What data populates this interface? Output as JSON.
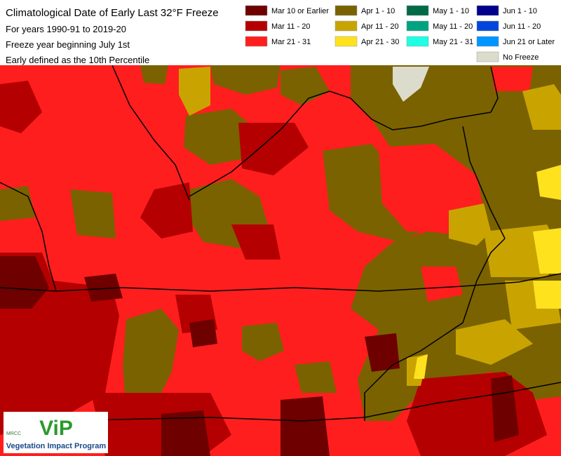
{
  "header": {
    "title_lines": [
      "Climatological Date of Early Last 32°F Freeze",
      "For years 1990-91 to 2019-20",
      "Freeze year beginning July 1st",
      "Early defined as the 10th Percentile"
    ]
  },
  "legend": {
    "items": [
      {
        "label": "Mar 10 or Earlier",
        "color": "#6e0000"
      },
      {
        "label": "Mar 11 - 20",
        "color": "#b40000"
      },
      {
        "label": "Mar 21 - 31",
        "color": "#ff1e1e"
      },
      {
        "label": "Apr 1 - 10",
        "color": "#7a6200"
      },
      {
        "label": "Apr 11 - 20",
        "color": "#c9a400"
      },
      {
        "label": "Apr 21 - 30",
        "color": "#ffe21e"
      },
      {
        "label": "May 1 - 10",
        "color": "#006a46"
      },
      {
        "label": "May 11 - 20",
        "color": "#00a381"
      },
      {
        "label": "May 21 - 31",
        "color": "#1effe4"
      },
      {
        "label": "Jun 1 - 10",
        "color": "#00008c"
      },
      {
        "label": "Jun 11 - 20",
        "color": "#0046dc"
      },
      {
        "label": "Jun 21 or Later",
        "color": "#0096ff"
      },
      {
        "label": "No Freeze",
        "color": "#dcdccc"
      }
    ]
  },
  "logo": {
    "org": "MRCC",
    "mark": "ViP",
    "program": "Vegetation Impact Program"
  }
}
